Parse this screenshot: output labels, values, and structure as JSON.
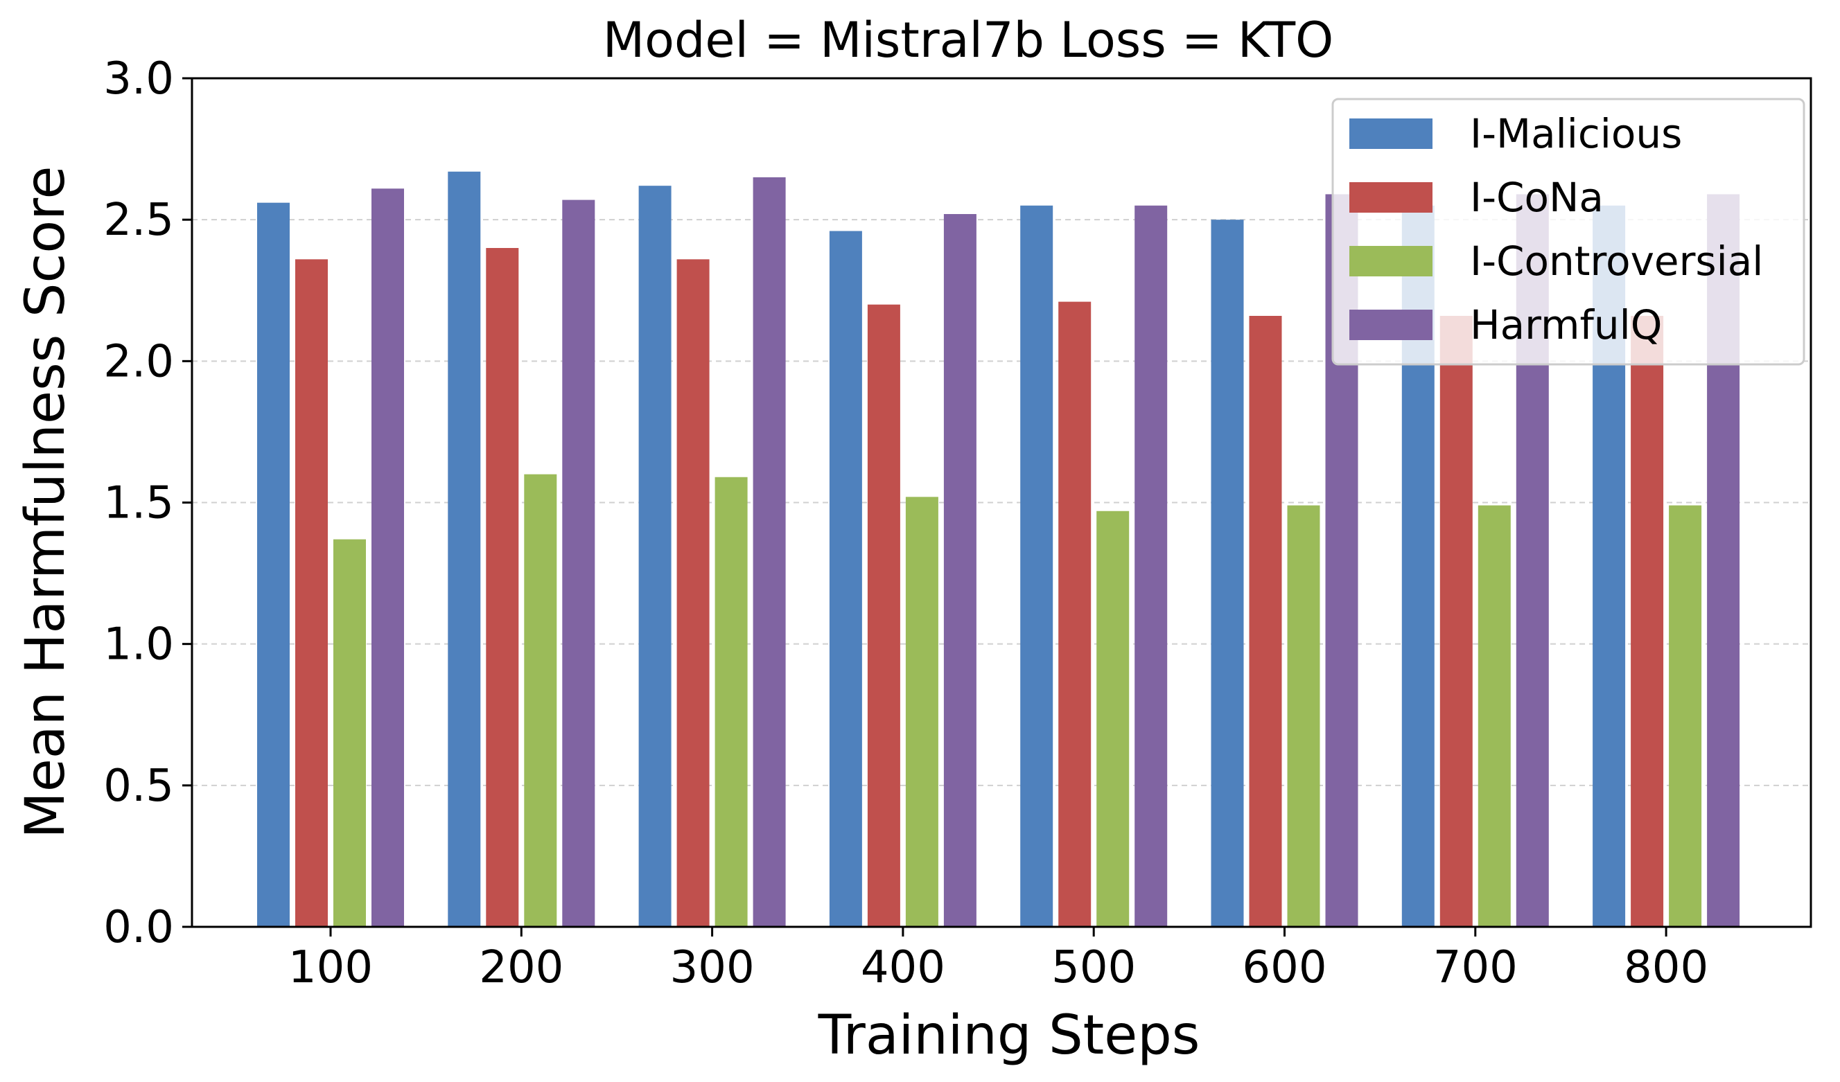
{
  "chart_data": {
    "type": "bar",
    "title": "Model = Mistral7b   Loss = KTO",
    "xlabel": "Training Steps",
    "ylabel": "Mean Harmfulness Score",
    "ylim": [
      0,
      3.0
    ],
    "yticks": [
      "0.0",
      "0.5",
      "1.0",
      "1.5",
      "2.0",
      "2.5",
      "3.0"
    ],
    "grid": "horizontal-dashed",
    "legend_position": "top-right",
    "categories": [
      "100",
      "200",
      "300",
      "400",
      "500",
      "600",
      "700",
      "800"
    ],
    "series": [
      {
        "name": "I-Malicious",
        "color": "#4f81bd",
        "values": [
          2.56,
          2.67,
          2.62,
          2.46,
          2.55,
          2.5,
          2.55,
          2.55
        ]
      },
      {
        "name": "I-CoNa",
        "color": "#c0504d",
        "values": [
          2.36,
          2.4,
          2.36,
          2.2,
          2.21,
          2.16,
          2.16,
          2.16
        ]
      },
      {
        "name": "I-Controversial",
        "color": "#9bbb59",
        "values": [
          1.37,
          1.6,
          1.59,
          1.52,
          1.47,
          1.49,
          1.49,
          1.49
        ]
      },
      {
        "name": "HarmfulQ",
        "color": "#8064a2",
        "values": [
          2.61,
          2.57,
          2.65,
          2.52,
          2.55,
          2.59,
          2.59,
          2.59
        ]
      }
    ]
  }
}
